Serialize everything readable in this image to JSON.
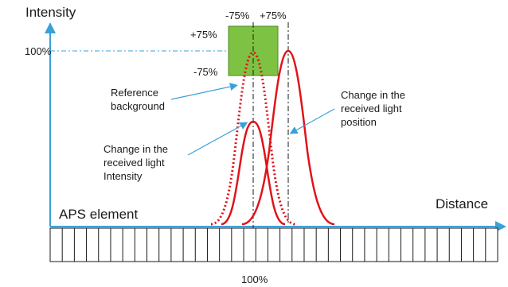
{
  "axis": {
    "y_title": "Intensity",
    "x_title": "Distance",
    "y_tick_100": "100%",
    "x_tick_100": "100%"
  },
  "tolerance": {
    "left_label": "-75%",
    "right_label": "+75%",
    "top_label": "+75%",
    "bottom_label": "-75%"
  },
  "annotations": {
    "reference": [
      "Reference",
      "background"
    ],
    "intensity_change": [
      "Change in the",
      "received light",
      "Intensity"
    ],
    "position_change": [
      "Change in the",
      "received light",
      "position"
    ]
  },
  "sensor": {
    "label": "APS element"
  },
  "colors": {
    "axis": "#3aa0d8",
    "curve": "#e0131a",
    "box_fill": "#7dc242",
    "box_stroke": "#4c8a25",
    "pointer": "#3aa0d8"
  }
}
